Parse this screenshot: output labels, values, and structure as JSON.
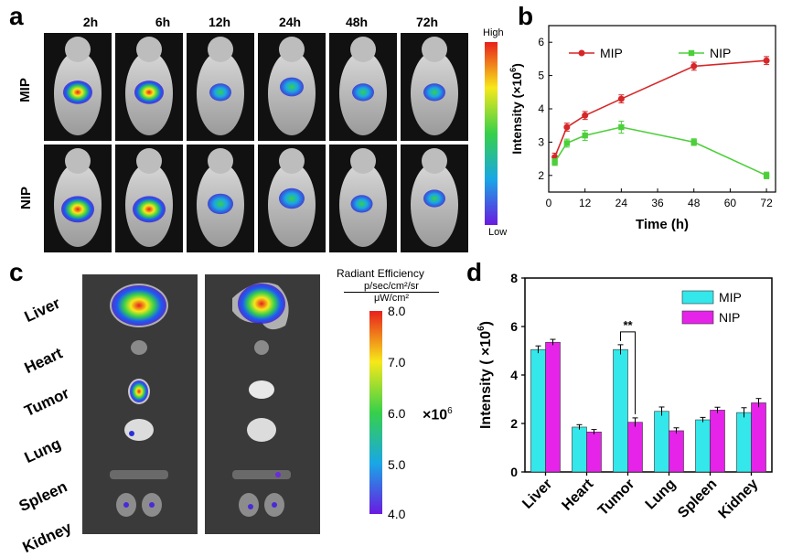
{
  "panels": {
    "a": "a",
    "b": "b",
    "c": "c",
    "d": "d"
  },
  "panel_a": {
    "timepoints": [
      "2h",
      "6h",
      "12h",
      "24h",
      "48h",
      "72h"
    ],
    "rows": [
      "MIP",
      "NIP"
    ],
    "scale_high": "High",
    "scale_low": "Low"
  },
  "panel_c": {
    "organs": [
      "Liver",
      "Heart",
      "Tumor",
      "Lung",
      "Spleen",
      "Kidney"
    ],
    "scale_title": "Radiant Efficiency",
    "scale_unit_num": "p/sec/cm²/sr",
    "scale_unit_den": "μW/cm²",
    "scale_ticks": [
      "8.0",
      "7.0",
      "6.0",
      "5.0",
      "4.0"
    ],
    "scale_multiplier": "×10",
    "scale_exp": "6"
  },
  "chart_data": [
    {
      "type": "line",
      "panel": "b",
      "xlabel": "Time (h)",
      "ylabel": "Intensity (×10",
      "ylabel_exp": "6",
      "ylabel_close": ")",
      "xlim": [
        0,
        75
      ],
      "ylim": [
        1.5,
        6.5
      ],
      "xticks": [
        0,
        12,
        24,
        36,
        48,
        60,
        72
      ],
      "yticks": [
        2,
        3,
        4,
        5,
        6
      ],
      "x": [
        2,
        6,
        12,
        24,
        48,
        72
      ],
      "legend": "top",
      "series": [
        {
          "name": "MIP",
          "color": "#d62728",
          "values": [
            2.55,
            3.45,
            3.8,
            4.3,
            5.28,
            5.45
          ],
          "errors": [
            0.12,
            0.12,
            0.12,
            0.12,
            0.12,
            0.12
          ]
        },
        {
          "name": "NIP",
          "color": "#4ccf3a",
          "values": [
            2.4,
            2.97,
            3.2,
            3.45,
            3.0,
            2.0
          ],
          "errors": [
            0.1,
            0.12,
            0.15,
            0.18,
            0.1,
            0.1
          ]
        }
      ]
    },
    {
      "type": "bar",
      "panel": "d",
      "ylabel": "Intensity ( ×10",
      "ylabel_exp": "6",
      "ylabel_close": ")",
      "ylim": [
        0,
        8
      ],
      "yticks": [
        0,
        2,
        4,
        6,
        8
      ],
      "categories": [
        "Liver",
        "Heart",
        "Tumor",
        "Lung",
        "Spleen",
        "Kidney"
      ],
      "legend": "top-right",
      "significance": {
        "category": "Tumor",
        "label": "**"
      },
      "series": [
        {
          "name": "MIP",
          "color": "#33e7ea",
          "values": [
            5.05,
            1.85,
            5.05,
            2.5,
            2.15,
            2.45
          ],
          "errors": [
            0.15,
            0.1,
            0.2,
            0.18,
            0.1,
            0.2
          ]
        },
        {
          "name": "NIP",
          "color": "#e523e9",
          "values": [
            5.35,
            1.65,
            2.05,
            1.7,
            2.55,
            2.85
          ],
          "errors": [
            0.12,
            0.1,
            0.18,
            0.12,
            0.12,
            0.18
          ]
        }
      ]
    }
  ]
}
